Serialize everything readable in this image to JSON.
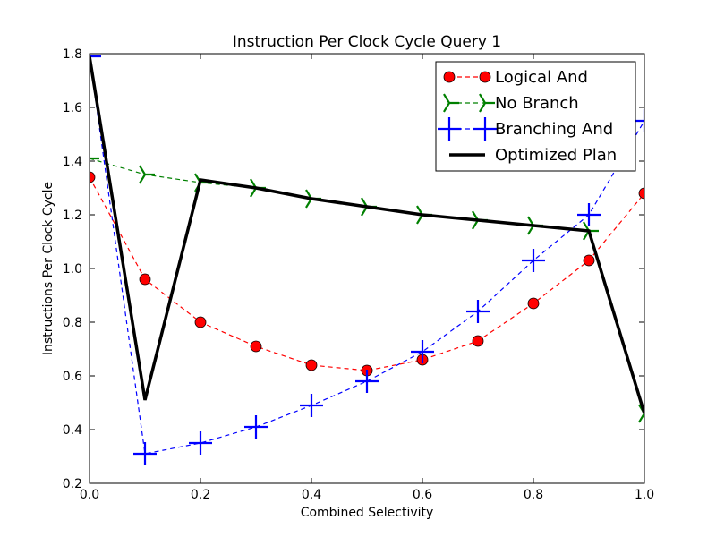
{
  "chart_data": {
    "type": "line",
    "title": "Instruction Per Clock Cycle Query 1",
    "xlabel": "Combined Selectivity",
    "ylabel": "Instructions Per Clock Cycle",
    "xlim": [
      0.0,
      1.0
    ],
    "ylim": [
      0.2,
      1.8
    ],
    "xticks": [
      0.0,
      0.2,
      0.4,
      0.6,
      0.8,
      1.0
    ],
    "xtick_labels": [
      "0.0",
      "0.2",
      "0.4",
      "0.6",
      "0.8",
      "1.0"
    ],
    "yticks": [
      0.2,
      0.4,
      0.6,
      0.8,
      1.0,
      1.2,
      1.4,
      1.6,
      1.8
    ],
    "ytick_labels": [
      "0.2",
      "0.4",
      "0.6",
      "0.8",
      "1.0",
      "1.2",
      "1.4",
      "1.6",
      "1.8"
    ],
    "grid": false,
    "legend_position": "top-right",
    "x": [
      0.0,
      0.1,
      0.2,
      0.3,
      0.4,
      0.5,
      0.6,
      0.7,
      0.8,
      0.9,
      1.0
    ],
    "series": [
      {
        "name": "Logical And",
        "values": [
          1.34,
          0.96,
          0.8,
          0.71,
          0.64,
          0.62,
          0.66,
          0.73,
          0.87,
          1.03,
          1.28
        ],
        "color": "#ff0000",
        "line_color": "#ff0000",
        "line_style": "dashed",
        "marker": "circle"
      },
      {
        "name": "No Branch",
        "values": [
          1.41,
          1.35,
          1.32,
          1.3,
          1.26,
          1.23,
          1.2,
          1.18,
          1.16,
          1.14,
          0.46
        ],
        "color": "#008000",
        "line_color": "#008000",
        "line_style": "dashed",
        "marker": "tri_right"
      },
      {
        "name": "Branching And",
        "values": [
          1.79,
          0.31,
          0.35,
          0.41,
          0.49,
          0.58,
          0.69,
          0.84,
          1.03,
          1.2,
          1.55
        ],
        "color": "#0000ff",
        "line_color": "#0000ff",
        "line_style": "dashed",
        "marker": "plus"
      },
      {
        "name": "Optimized Plan",
        "values": [
          1.79,
          0.51,
          1.33,
          1.3,
          1.26,
          1.23,
          1.2,
          1.18,
          1.16,
          1.14,
          0.46
        ],
        "color": "#000000",
        "line_color": "#000000",
        "line_style": "solid",
        "marker": "none"
      }
    ]
  }
}
